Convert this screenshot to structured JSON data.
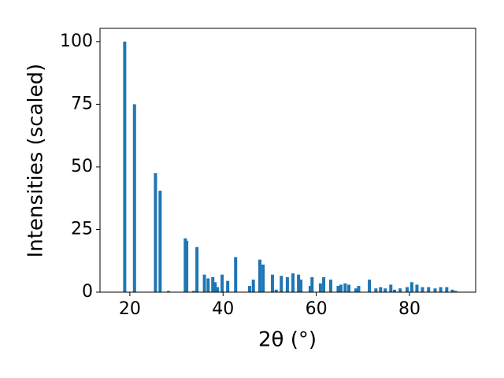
{
  "chart_data": {
    "type": "bar",
    "xlabel": "2θ (°)",
    "ylabel": "Intensities (scaled)",
    "color": "#1f77b4",
    "x": [
      18.9,
      21.0,
      25.5,
      26.5,
      28.3,
      31.9,
      32.2,
      33.7,
      34.4,
      36.0,
      36.8,
      37.8,
      38.3,
      38.8,
      39.8,
      41.0,
      42.7,
      45.7,
      46.5,
      47.9,
      48.6,
      50.6,
      51.4,
      52.5,
      53.8,
      55.0,
      56.2,
      56.7,
      58.7,
      59.1,
      60.9,
      61.6,
      63.1,
      64.7,
      65.3,
      66.2,
      67.0,
      68.5,
      69.1,
      71.4,
      72.8,
      73.8,
      74.8,
      76.0,
      76.8,
      78.0,
      79.5,
      80.5,
      81.6,
      82.8,
      84.1,
      85.5,
      86.7,
      88.0,
      89.2,
      89.9
    ],
    "values": [
      100,
      75,
      47.5,
      40.5,
      0.5,
      21.5,
      20.5,
      0.5,
      18,
      7,
      5.5,
      6,
      4,
      2,
      7,
      4.5,
      14,
      2.5,
      5,
      13,
      11,
      7,
      1,
      6.5,
      6,
      7.5,
      7,
      5,
      2.5,
      6,
      3.5,
      6,
      5,
      2.5,
      3,
      3.5,
      3,
      1.5,
      2.5,
      5,
      1.5,
      2,
      1.5,
      3,
      1,
      1.5,
      2,
      4,
      3,
      2,
      2,
      1.5,
      2,
      2,
      1,
      0.5
    ],
    "xlim": [
      13.6,
      94.2
    ],
    "ylim": [
      0,
      105.3
    ],
    "xticks": [
      20,
      40,
      60,
      80
    ],
    "yticks": [
      0,
      25,
      50,
      75,
      100
    ]
  }
}
